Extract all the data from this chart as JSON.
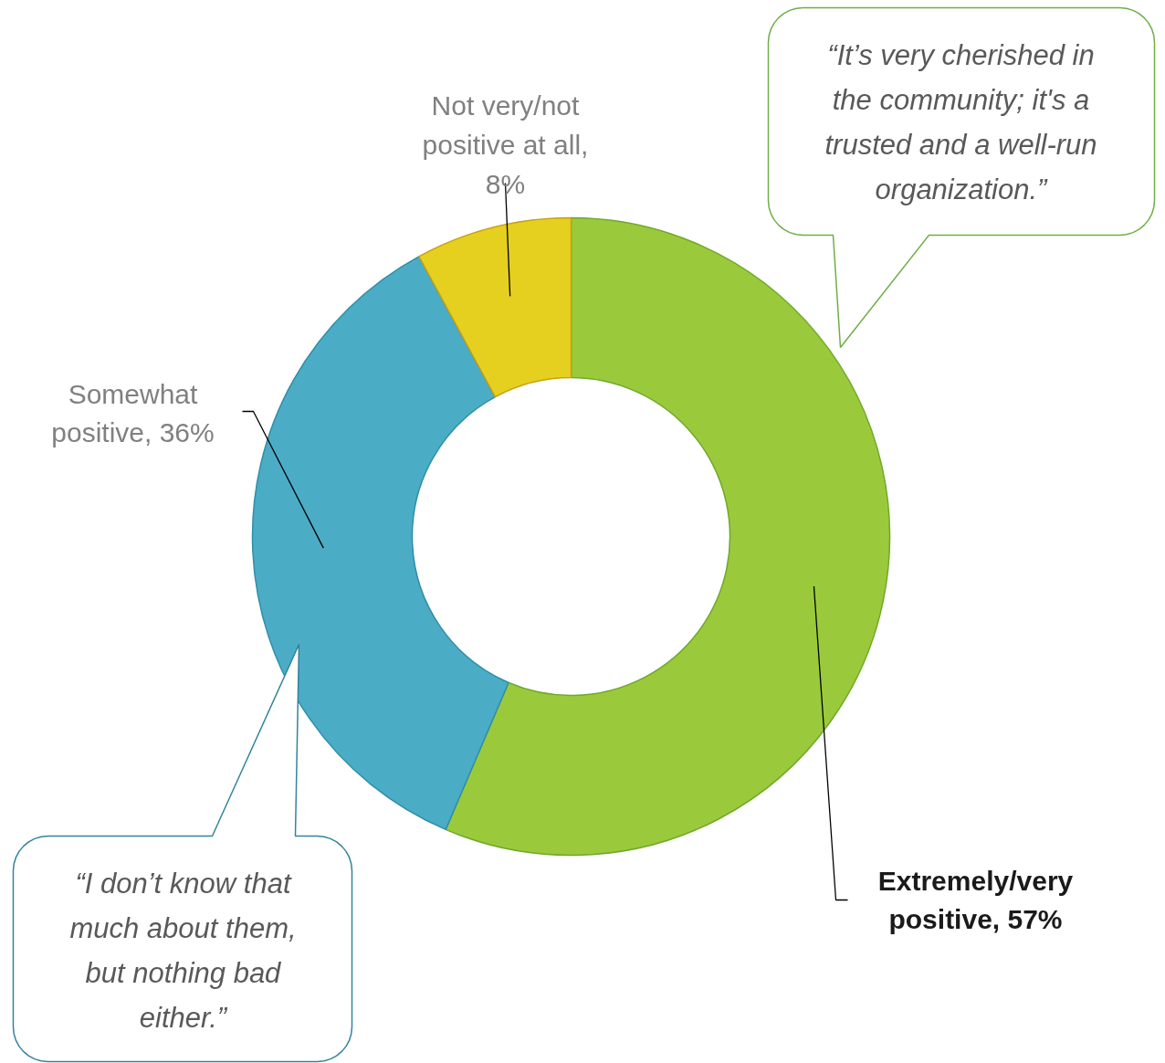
{
  "chart_data": {
    "type": "donut",
    "categories": [
      "Extremely/very positive",
      "Somewhat positive",
      "Not very/not positive at all"
    ],
    "values": [
      57,
      36,
      8
    ],
    "colors": [
      "#9aca3c",
      "#4bacc6",
      "#e5d020"
    ],
    "value_labels": [
      ", 57%",
      ", 36%",
      ", 8%"
    ],
    "annotations": [
      "“It’s very cherished in\nthe community; it's a\ntrusted and a well-run\norganization.”",
      "“I don’t know that\nmuch about them,\nbut nothing bad\neither.”"
    ]
  }
}
